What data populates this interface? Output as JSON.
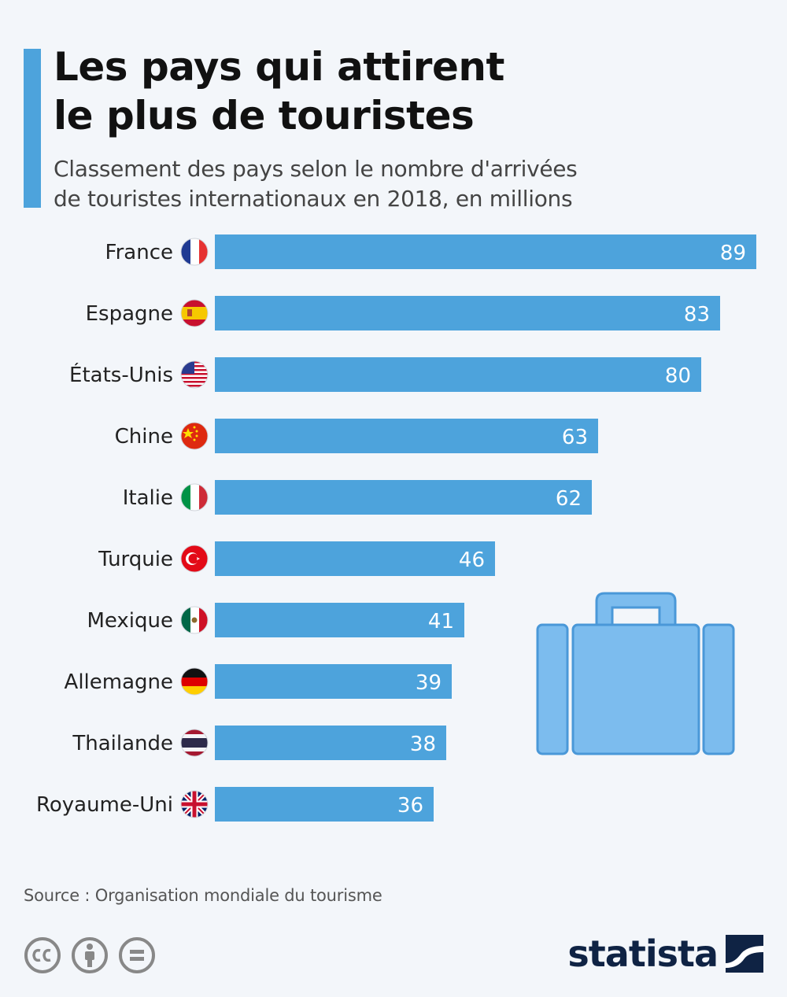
{
  "header": {
    "title_line1": "Les pays qui attirent",
    "title_line2": "le plus de touristes",
    "subtitle_line1": "Classement des pays selon le nombre d'arrivées",
    "subtitle_line2": "de touristes internationaux en 2018, en millions"
  },
  "chart_data": {
    "type": "bar",
    "orientation": "horizontal",
    "title": "Les pays qui attirent le plus de touristes",
    "subtitle": "Classement des pays selon le nombre d'arrivées de touristes internationaux en 2018, en millions",
    "categories": [
      "France",
      "Espagne",
      "États-Unis",
      "Chine",
      "Italie",
      "Turquie",
      "Mexique",
      "Allemagne",
      "Thailande",
      "Royaume-Uni"
    ],
    "values": [
      89,
      83,
      80,
      63,
      62,
      46,
      41,
      39,
      38,
      36
    ],
    "flags": [
      "france-flag",
      "spain-flag",
      "usa-flag",
      "china-flag",
      "italy-flag",
      "turkey-flag",
      "mexico-flag",
      "germany-flag",
      "thailand-flag",
      "uk-flag"
    ],
    "xlim": [
      0,
      89
    ],
    "grid": false,
    "data_labels": "inside-end",
    "bar_color": "#4da3dc",
    "decoration": "suitcase-icon"
  },
  "footer": {
    "source": "Source : Organisation mondiale du tourisme",
    "brand": "statista",
    "license_icons": [
      "cc-icon",
      "attribution-icon",
      "no-derivatives-icon"
    ]
  },
  "colors": {
    "accent": "#4da3dc",
    "background": "#f3f6fa",
    "suitcase": "#7cbcee",
    "brand": "#0f2344"
  }
}
